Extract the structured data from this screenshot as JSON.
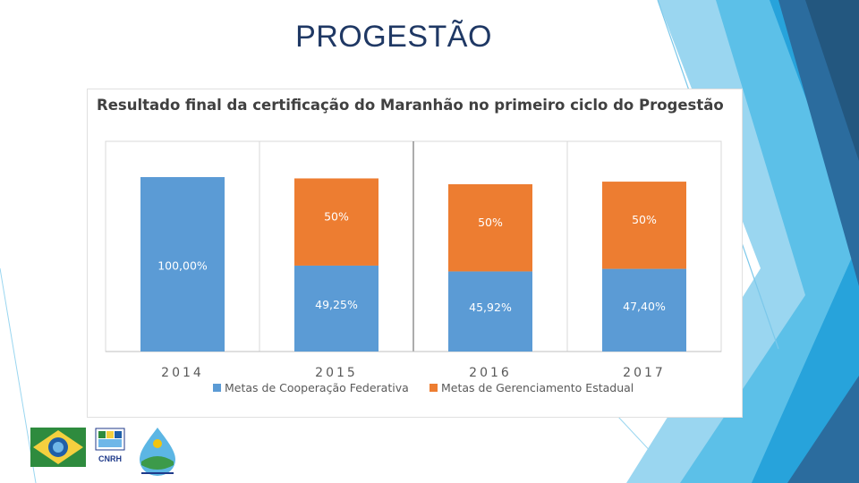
{
  "slide": {
    "title": "PROGESTÃO"
  },
  "chart_data": {
    "type": "bar",
    "stacked": true,
    "title": "Resultado final da certificação do Maranhão no primeiro ciclo do Progestão",
    "categories": [
      "2014",
      "2015",
      "2016",
      "2017"
    ],
    "series": [
      {
        "name": "Metas de Cooperação Federativa",
        "color": "#5b9bd5",
        "values": [
          100,
          49.25,
          45.92,
          47.4
        ],
        "labels": [
          "100,00%",
          "49,25%",
          "45,92%",
          "47,40%"
        ]
      },
      {
        "name": "Metas de Gerenciamento Estadual",
        "color": "#ed7d31",
        "values": [
          null,
          50,
          50,
          50
        ],
        "labels": [
          "",
          "50%",
          "50%",
          "50%"
        ]
      }
    ],
    "ylim": [
      0,
      100
    ],
    "legend_position": "bottom",
    "grid": false
  },
  "logos": {
    "cnrh_text": "CNRH"
  }
}
